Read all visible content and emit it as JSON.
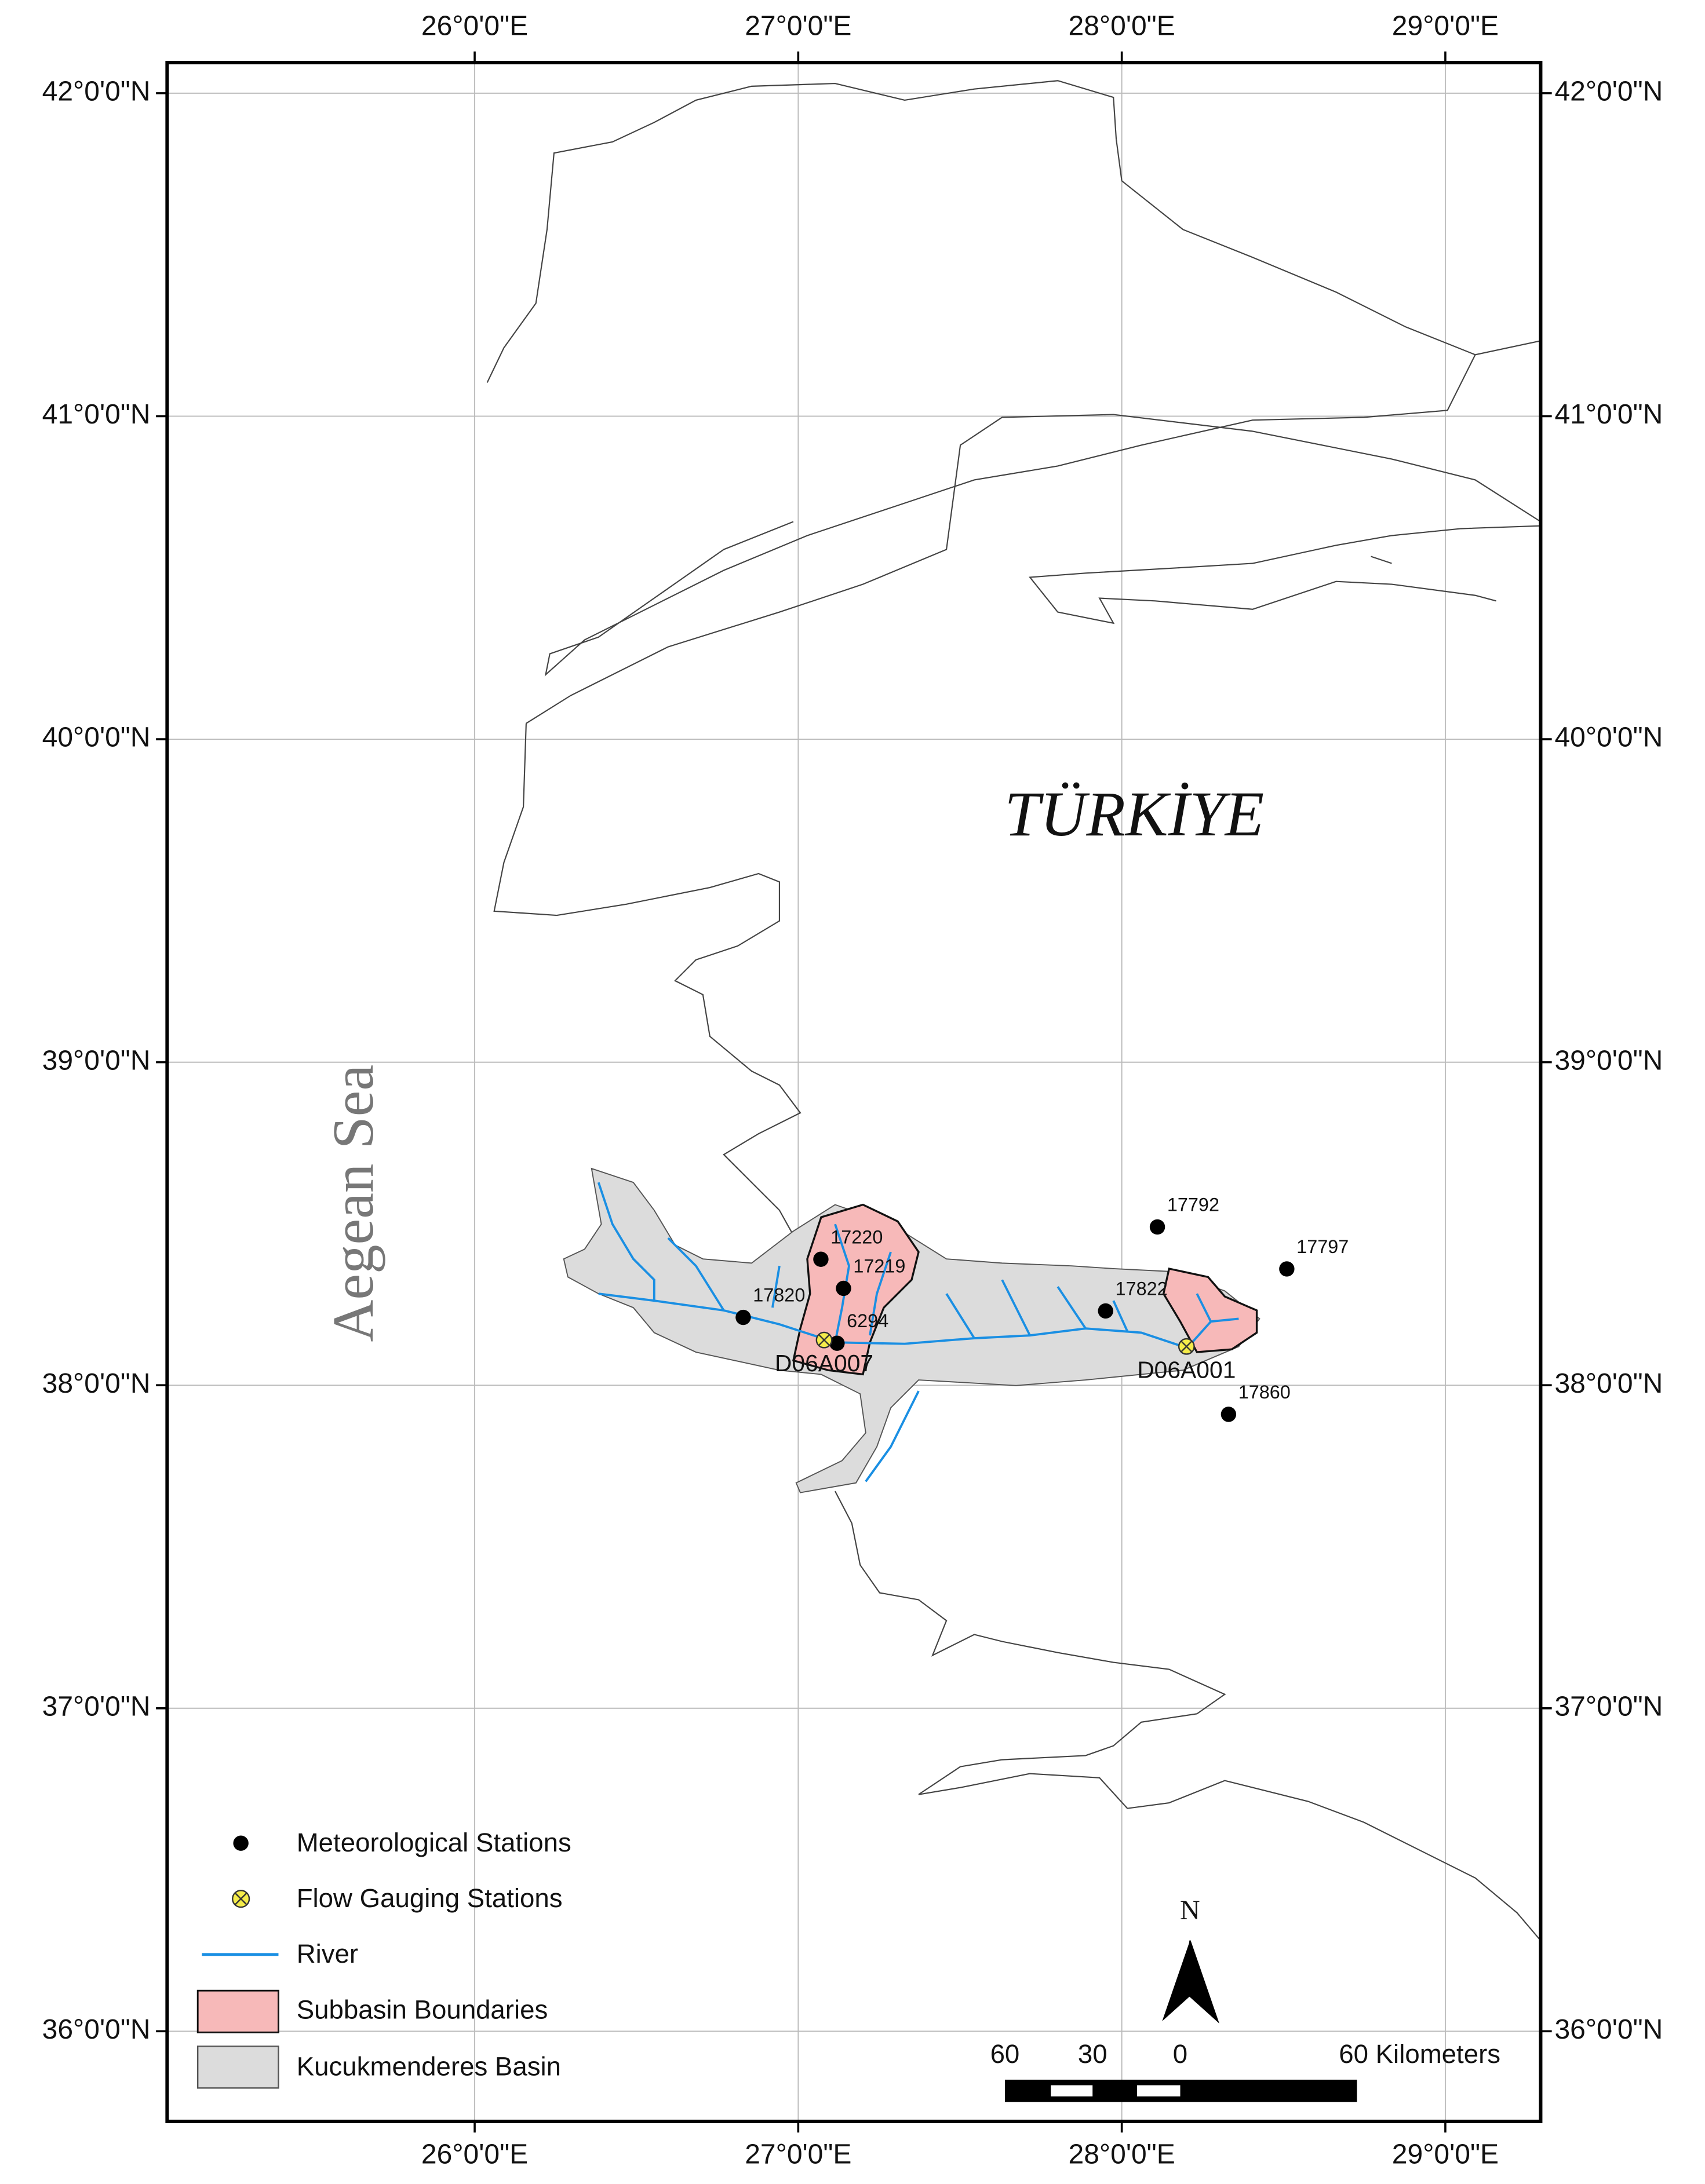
{
  "map": {
    "graticule": {
      "lon": [
        {
          "value": 26,
          "label": "26°0'0\"E"
        },
        {
          "value": 27,
          "label": "27°0'0\"E"
        },
        {
          "value": 28,
          "label": "28°0'0\"E"
        },
        {
          "value": 29,
          "label": "29°0'0\"E"
        }
      ],
      "lat": [
        {
          "value": 42,
          "label": "42°0'0\"N"
        },
        {
          "value": 41,
          "label": "41°0'0\"N"
        },
        {
          "value": 40,
          "label": "40°0'0\"N"
        },
        {
          "value": 39,
          "label": "39°0'0\"N"
        },
        {
          "value": 38,
          "label": "38°0'0\"N"
        },
        {
          "value": 37,
          "label": "37°0'0\"N"
        },
        {
          "value": 36,
          "label": "36°0'0\"N"
        }
      ]
    },
    "country_label": "TÜRKİYE",
    "sea_label": "Aegean Sea",
    "stations": {
      "meteorological": [
        {
          "name": "17220",
          "lon": 27.07,
          "lat": 38.39
        },
        {
          "name": "17219",
          "lon": 27.14,
          "lat": 38.3
        },
        {
          "name": "17820",
          "lon": 26.83,
          "lat": 38.21
        },
        {
          "name": "6294",
          "lon": 27.12,
          "lat": 38.13
        },
        {
          "name": "17822",
          "lon": 27.95,
          "lat": 38.23
        },
        {
          "name": "17792",
          "lon": 28.11,
          "lat": 38.49
        },
        {
          "name": "17797",
          "lon": 28.51,
          "lat": 38.36
        },
        {
          "name": "17860",
          "lon": 28.33,
          "lat": 37.91
        }
      ],
      "flow": [
        {
          "name": "D06A007",
          "lon": 27.08,
          "lat": 38.14
        },
        {
          "name": "D06A001",
          "lon": 28.2,
          "lat": 38.12
        }
      ]
    },
    "legend": [
      "Meteorological Stations",
      "Flow Gauging Stations",
      "River",
      "Subbasin Boundaries",
      "Kucukmenderes Basin"
    ],
    "scale_bar": [
      "60",
      "30",
      "0",
      "60 Kilometers"
    ],
    "north": "N"
  }
}
